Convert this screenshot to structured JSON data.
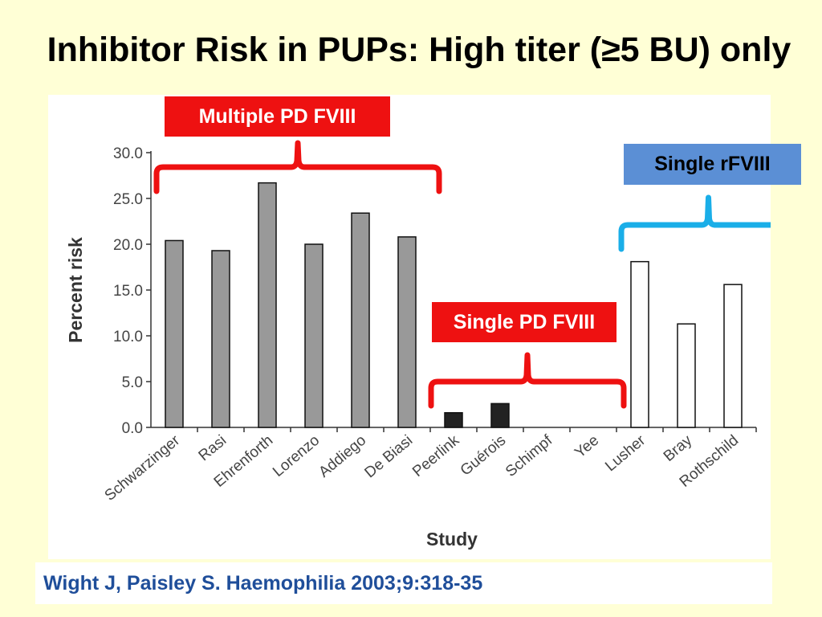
{
  "slide": {
    "title": "Inhibitor Risk in PUPs: High titer (≥5 BU) only",
    "citation": "Wight J, Paisley S. Haemophilia 2003;9:318-35"
  },
  "colors": {
    "background": "#FFFFD6",
    "multiple_pd": "#999999",
    "single_pd": "#222222",
    "single_rfviii": "#FFFFFF",
    "red_bracket": "#EE1111",
    "blue_bracket": "#1AAEE8",
    "blue_label": "#5B8FD5"
  },
  "groups": [
    {
      "label": "Multiple PD FVIII",
      "bar_color": "#999999",
      "bracket_color": "#EE1111"
    },
    {
      "label": "Single PD FVIII",
      "bar_color": "#222222",
      "bracket_color": "#EE1111"
    },
    {
      "label": "Single rFVIII",
      "bar_color": "#FFFFFF",
      "bracket_color": "#1AAEE8"
    }
  ],
  "chart_data": {
    "type": "bar",
    "title": "",
    "xlabel": "Study",
    "ylabel": "Percent risk",
    "ylim": [
      0,
      30
    ],
    "yticks": [
      "0.0",
      "5.0",
      "10.0",
      "15.0",
      "20.0",
      "25.0",
      "30.0"
    ],
    "grid": false,
    "categories": [
      "Schwarzinger",
      "Rasi",
      "Ehrenforth",
      "Lorenzo",
      "Addiego",
      "De Biasi",
      "Peerlink",
      "Guérois",
      "Schimpf",
      "Yee",
      "Lusher",
      "Bray",
      "Rothschild"
    ],
    "values": [
      20.4,
      19.3,
      26.7,
      20.0,
      23.4,
      20.8,
      1.6,
      2.6,
      0.0,
      0.0,
      18.1,
      11.3,
      15.6
    ],
    "group_index": [
      0,
      0,
      0,
      0,
      0,
      0,
      1,
      1,
      1,
      1,
      2,
      2,
      2
    ]
  }
}
